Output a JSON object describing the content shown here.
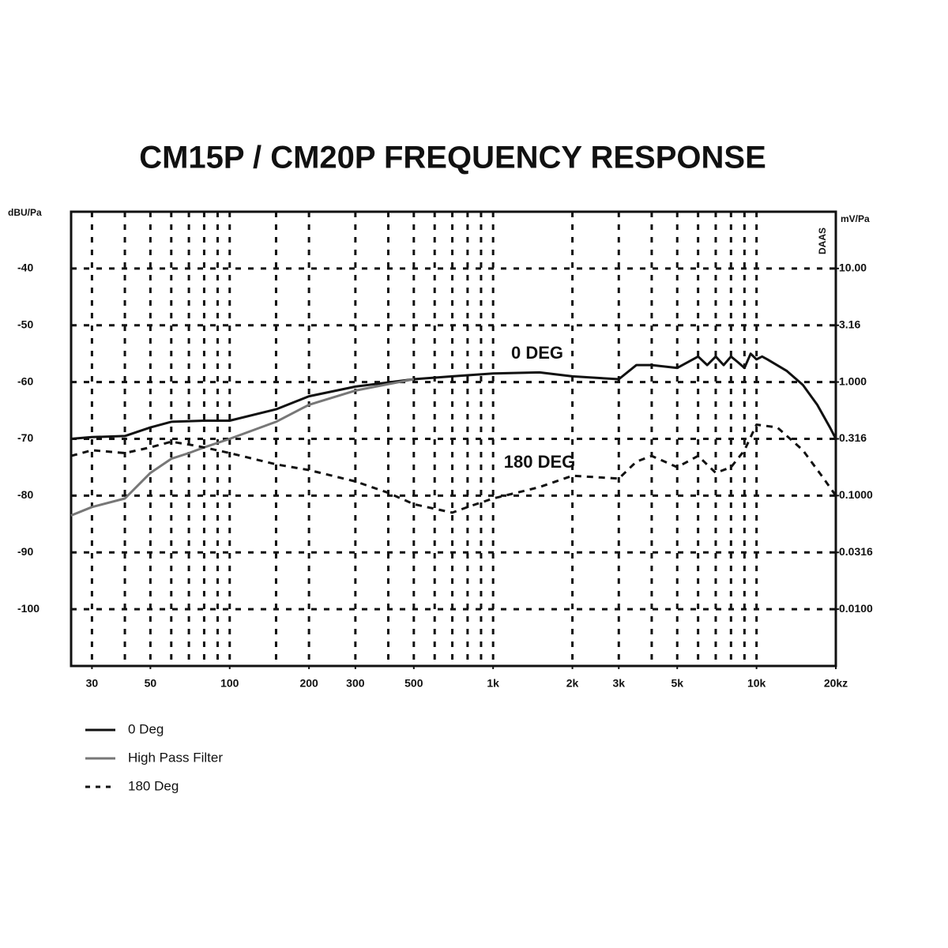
{
  "chart_data": {
    "type": "line",
    "title": "CM15P / CM20P FREQUENCY RESPONSE",
    "y_label": "dBU/Pa",
    "y2_label": "mV/Pa",
    "annotations": [
      "0 DEG",
      "180 DEG",
      "DAAS"
    ],
    "xscale": "log",
    "xlim": [
      25,
      20000
    ],
    "xticks": [
      30,
      50,
      100,
      200,
      300,
      500,
      {
        "value": 1000,
        "label": "1k"
      },
      {
        "value": 2000,
        "label": "2k"
      },
      {
        "value": 3000,
        "label": "3k"
      },
      {
        "value": 5000,
        "label": "5k"
      },
      {
        "value": 10000,
        "label": "10k"
      },
      {
        "value": 20000,
        "label": "20kz"
      }
    ],
    "xgrid": [
      30,
      40,
      50,
      60,
      70,
      80,
      90,
      100,
      150,
      200,
      300,
      400,
      500,
      600,
      700,
      800,
      900,
      1000,
      2000,
      3000,
      4000,
      5000,
      6000,
      7000,
      8000,
      9000,
      10000,
      20000
    ],
    "ylim": [
      -110,
      -30
    ],
    "yticks": [
      -40,
      -50,
      -60,
      -70,
      -80,
      -90,
      -100
    ],
    "y2scale": "log",
    "y2lim": [
      0.00316,
      31.6
    ],
    "y2ticks": [
      {
        "value": 10,
        "label": "10.00"
      },
      3.16,
      {
        "value": 1,
        "label": "1.000"
      },
      0.316,
      {
        "value": 0.1,
        "label": "0.1000"
      },
      0.0316,
      {
        "value": 0.01,
        "label": "0.0100"
      }
    ],
    "grid": true,
    "series": [
      {
        "name": "0 Deg",
        "color": "#111111",
        "style": "solid",
        "x": [
          25,
          30,
          40,
          50,
          60,
          80,
          100,
          150,
          200,
          300,
          500,
          700,
          1000,
          1500,
          2000,
          3000,
          3500,
          4000,
          5000,
          6000,
          6500,
          7000,
          7500,
          8000,
          8500,
          9000,
          9500,
          10000,
          10500,
          11000,
          13000,
          15000,
          17000,
          19000,
          20000
        ],
        "values": [
          -70,
          -69.7,
          -69.5,
          -68,
          -67,
          -66.8,
          -66.8,
          -64.8,
          -62.5,
          -60.8,
          -59.5,
          -59,
          -58.5,
          -58.3,
          -59,
          -59.5,
          -57,
          -57,
          -57.5,
          -55.5,
          -57,
          -55.5,
          -57,
          -55.5,
          -56.5,
          -57.5,
          -55,
          -56,
          -55.5,
          -56,
          -58,
          -60.5,
          -64,
          -68,
          -70
        ]
      },
      {
        "name": "High Pass Filter",
        "color": "#777777",
        "style": "solid",
        "x": [
          25,
          30,
          40,
          50,
          60,
          70,
          80,
          100,
          150,
          200,
          300,
          500
        ],
        "values": [
          -83.5,
          -82,
          -80.5,
          -76,
          -73.5,
          -72.5,
          -71.5,
          -70,
          -67,
          -64,
          -61.5,
          -59.5
        ]
      },
      {
        "name": "180 Deg",
        "color": "#111111",
        "style": "dashed",
        "x": [
          25,
          30,
          40,
          50,
          60,
          70,
          80,
          100,
          150,
          200,
          300,
          400,
          500,
          700,
          800,
          1000,
          1500,
          2000,
          3000,
          3500,
          4000,
          5000,
          6000,
          7000,
          8000,
          9000,
          10000,
          12000,
          15000,
          18000,
          20000
        ],
        "values": [
          -73,
          -72,
          -72.5,
          -71.5,
          -70.5,
          -71,
          -71.5,
          -72.5,
          -74.5,
          -75.5,
          -77.5,
          -79.5,
          -81.5,
          -83,
          -82,
          -80.5,
          -78.5,
          -76.5,
          -77,
          -74,
          -73,
          -75,
          -73,
          -76,
          -75,
          -72,
          -67.5,
          -68,
          -72,
          -77,
          -80
        ]
      }
    ]
  }
}
